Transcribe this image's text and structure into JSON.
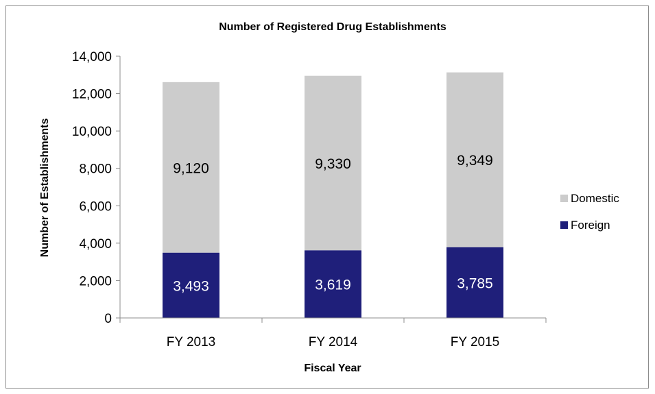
{
  "chart_data": {
    "type": "bar",
    "stacked": true,
    "title": "Number of Registered Drug Establishments",
    "xlabel": "Fiscal Year",
    "ylabel": "Number of Establishments",
    "categories": [
      "FY 2013",
      "FY 2014",
      "FY 2015"
    ],
    "series": [
      {
        "name": "Foreign",
        "values": [
          3493,
          3619,
          3785
        ],
        "labels": [
          "3,493",
          "3,619",
          "3,785"
        ],
        "color": "#1f1f7a",
        "label_color": "#ffffff"
      },
      {
        "name": "Domestic",
        "values": [
          9120,
          9330,
          9349
        ],
        "labels": [
          "9,120",
          "9,330",
          "9,349"
        ],
        "color": "#cccccc",
        "label_color": "#000000"
      }
    ],
    "ylim": [
      0,
      14000
    ],
    "yticks": [
      0,
      2000,
      4000,
      6000,
      8000,
      10000,
      12000,
      14000
    ],
    "ytick_labels": [
      "0",
      "2,000",
      "4,000",
      "6,000",
      "8,000",
      "10,000",
      "12,000",
      "14,000"
    ],
    "legend_order": [
      "Domestic",
      "Foreign"
    ],
    "legend_position": "right",
    "grid": false
  }
}
